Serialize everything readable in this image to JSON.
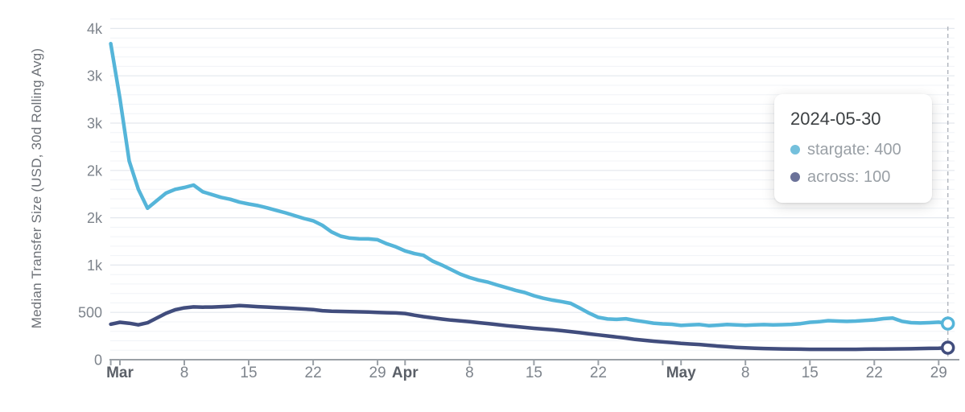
{
  "y_axis": {
    "title": "Median Transfer Size (USD, 30d Rolling Avg)",
    "ticks": [
      {
        "value": 0,
        "label": "0"
      },
      {
        "value": 500,
        "label": "500"
      },
      {
        "value": 1000,
        "label": "1k"
      },
      {
        "value": 1500,
        "label": "2k"
      },
      {
        "value": 2000,
        "label": "2k"
      },
      {
        "value": 2500,
        "label": "3k"
      },
      {
        "value": 3000,
        "label": "3k"
      },
      {
        "value": 3500,
        "label": "4k"
      }
    ]
  },
  "x_axis": {
    "ticks": [
      {
        "date": "2024-02-29",
        "label": "",
        "bold": false
      },
      {
        "date": "2024-03-01",
        "label": "Mar",
        "bold": true
      },
      {
        "date": "2024-03-08",
        "label": "8",
        "bold": false
      },
      {
        "date": "2024-03-15",
        "label": "15",
        "bold": false
      },
      {
        "date": "2024-03-22",
        "label": "22",
        "bold": false
      },
      {
        "date": "2024-03-29",
        "label": "29",
        "bold": false
      },
      {
        "date": "2024-04-01",
        "label": "Apr",
        "bold": true
      },
      {
        "date": "2024-04-08",
        "label": "8",
        "bold": false
      },
      {
        "date": "2024-04-15",
        "label": "15",
        "bold": false
      },
      {
        "date": "2024-04-22",
        "label": "22",
        "bold": false
      },
      {
        "date": "2024-04-29",
        "label": "",
        "bold": false
      },
      {
        "date": "2024-05-01",
        "label": "May",
        "bold": true
      },
      {
        "date": "2024-05-08",
        "label": "8",
        "bold": false
      },
      {
        "date": "2024-05-15",
        "label": "15",
        "bold": false
      },
      {
        "date": "2024-05-22",
        "label": "22",
        "bold": false
      },
      {
        "date": "2024-05-29",
        "label": "29",
        "bold": false
      }
    ]
  },
  "tooltip": {
    "date": "2024-05-30",
    "rows": [
      {
        "series": "stargate",
        "value": "400",
        "display": "stargate: 400",
        "dot_color": "#74c0dc"
      },
      {
        "series": "across",
        "value": "100",
        "display": "across: 100",
        "dot_color": "#6b7299"
      }
    ]
  },
  "colors": {
    "stargate_line": "#55b5d9",
    "across_line": "#414d7d",
    "grid_major": "#e3e7ee",
    "grid_minor": "#f0f3f7",
    "axis": "#9aa0a6",
    "crosshair": "#b3b7bf",
    "month_label": "#5b6068",
    "day_label": "#7e848c"
  },
  "chart_data": {
    "type": "line",
    "title": "",
    "xlabel": "",
    "ylabel": "Median Transfer Size (USD, 30d Rolling Avg)",
    "ylim": [
      0,
      3600
    ],
    "y_major_ticks": [
      0,
      500,
      1000,
      1500,
      2000,
      2500,
      3000,
      3500
    ],
    "y_tick_labels": [
      "0",
      "500",
      "1k",
      "2k",
      "2k",
      "3k",
      "3k",
      "4k"
    ],
    "grid": "horizontal major+minor",
    "legend_position": "tooltip-overlay",
    "highlight": {
      "date": "2024-05-30",
      "stargate": 400,
      "across": 100
    },
    "dates": [
      "2024-02-29",
      "2024-03-01",
      "2024-03-02",
      "2024-03-03",
      "2024-03-04",
      "2024-03-05",
      "2024-03-06",
      "2024-03-07",
      "2024-03-08",
      "2024-03-09",
      "2024-03-10",
      "2024-03-11",
      "2024-03-12",
      "2024-03-13",
      "2024-03-14",
      "2024-03-15",
      "2024-03-16",
      "2024-03-17",
      "2024-03-18",
      "2024-03-19",
      "2024-03-20",
      "2024-03-21",
      "2024-03-22",
      "2024-03-23",
      "2024-03-24",
      "2024-03-25",
      "2024-03-26",
      "2024-03-27",
      "2024-03-28",
      "2024-03-29",
      "2024-03-30",
      "2024-03-31",
      "2024-04-01",
      "2024-04-02",
      "2024-04-03",
      "2024-04-04",
      "2024-04-05",
      "2024-04-06",
      "2024-04-07",
      "2024-04-08",
      "2024-04-09",
      "2024-04-10",
      "2024-04-11",
      "2024-04-12",
      "2024-04-13",
      "2024-04-14",
      "2024-04-15",
      "2024-04-16",
      "2024-04-17",
      "2024-04-18",
      "2024-04-19",
      "2024-04-20",
      "2024-04-21",
      "2024-04-22",
      "2024-04-23",
      "2024-04-24",
      "2024-04-25",
      "2024-04-26",
      "2024-04-27",
      "2024-04-28",
      "2024-04-29",
      "2024-04-30",
      "2024-05-01",
      "2024-05-02",
      "2024-05-03",
      "2024-05-04",
      "2024-05-05",
      "2024-05-06",
      "2024-05-07",
      "2024-05-08",
      "2024-05-09",
      "2024-05-10",
      "2024-05-11",
      "2024-05-12",
      "2024-05-13",
      "2024-05-14",
      "2024-05-15",
      "2024-05-16",
      "2024-05-17",
      "2024-05-18",
      "2024-05-19",
      "2024-05-20",
      "2024-05-21",
      "2024-05-22",
      "2024-05-23",
      "2024-05-24",
      "2024-05-25",
      "2024-05-26",
      "2024-05-27",
      "2024-05-28",
      "2024-05-29",
      "2024-05-30"
    ],
    "series": [
      {
        "name": "stargate",
        "color": "#55b5d9",
        "values": [
          3340,
          2760,
          2100,
          1800,
          1600,
          1680,
          1760,
          1800,
          1820,
          1845,
          1775,
          1745,
          1715,
          1695,
          1665,
          1645,
          1628,
          1605,
          1578,
          1552,
          1522,
          1492,
          1468,
          1420,
          1350,
          1305,
          1285,
          1278,
          1276,
          1268,
          1225,
          1192,
          1150,
          1122,
          1103,
          1042,
          1000,
          952,
          905,
          868,
          840,
          820,
          790,
          762,
          733,
          710,
          676,
          650,
          630,
          614,
          595,
          545,
          492,
          447,
          430,
          426,
          433,
          415,
          401,
          386,
          378,
          374,
          362,
          368,
          372,
          360,
          365,
          372,
          368,
          363,
          368,
          371,
          368,
          370,
          373,
          381,
          395,
          401,
          412,
          408,
          405,
          408,
          415,
          421,
          434,
          440,
          406,
          391,
          388,
          391,
          396,
          382
        ]
      },
      {
        "name": "across",
        "color": "#414d7d",
        "values": [
          375,
          395,
          385,
          368,
          390,
          440,
          490,
          527,
          548,
          558,
          555,
          556,
          560,
          565,
          572,
          566,
          560,
          556,
          551,
          546,
          541,
          536,
          530,
          518,
          513,
          510,
          508,
          506,
          503,
          500,
          497,
          494,
          488,
          470,
          455,
          442,
          429,
          418,
          410,
          401,
          391,
          382,
          371,
          360,
          350,
          341,
          332,
          324,
          317,
          307,
          297,
          286,
          273,
          262,
          251,
          240,
          229,
          214,
          205,
          196,
          188,
          180,
          172,
          166,
          161,
          152,
          144,
          137,
          130,
          125,
          121,
          118,
          116,
          114,
          112,
          111,
          110,
          110,
          110,
          110,
          110,
          110,
          111,
          112,
          113,
          114,
          115,
          116,
          118,
          120,
          122,
          127
        ]
      }
    ]
  }
}
